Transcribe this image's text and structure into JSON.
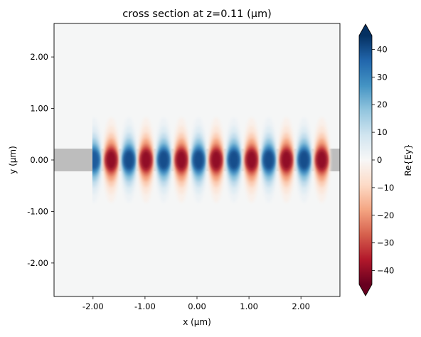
{
  "chart_data": {
    "type": "heatmap",
    "title": "cross section at z=0.11 (µm)",
    "xlabel": "x (µm)",
    "ylabel": "y (µm)",
    "colorbar_label": "Re{Ey}",
    "colormap": "RdBu",
    "xlim": [
      -2.75,
      2.75
    ],
    "ylim": [
      -2.65,
      2.65
    ],
    "clim": [
      -45,
      45
    ],
    "x_ticks": [
      -2,
      -1,
      0,
      1,
      2
    ],
    "x_tick_labels": [
      "-2.00",
      "-1.00",
      "0.00",
      "1.00",
      "2.00"
    ],
    "y_ticks": [
      2,
      1,
      0,
      -1,
      -2
    ],
    "y_tick_labels": [
      "2.00",
      "1.00",
      "0.00",
      "-1.00",
      "-2.00"
    ],
    "colorbar_ticks": [
      40,
      30,
      20,
      10,
      0,
      -10,
      -20,
      -30,
      -40
    ],
    "colorbar_tick_labels": [
      "40",
      "30",
      "20",
      "10",
      "0",
      "−10",
      "−20",
      "−30",
      "−40"
    ],
    "waveguide": {
      "y_min": -0.22,
      "y_max": 0.22,
      "color": "#bdbdbd"
    },
    "source_x": -2.0,
    "field_lobes": [
      {
        "x": -1.985,
        "value": 38
      },
      {
        "x": -1.65,
        "value": -40
      },
      {
        "x": -1.31,
        "value": 40
      },
      {
        "x": -0.98,
        "value": -40
      },
      {
        "x": -0.64,
        "value": 40
      },
      {
        "x": -0.3,
        "value": -40
      },
      {
        "x": 0.03,
        "value": 40
      },
      {
        "x": 0.37,
        "value": -40
      },
      {
        "x": 0.71,
        "value": 40
      },
      {
        "x": 1.05,
        "value": -40
      },
      {
        "x": 1.38,
        "value": 40
      },
      {
        "x": 1.72,
        "value": -40
      },
      {
        "x": 2.06,
        "value": 40
      },
      {
        "x": 2.4,
        "value": -40
      }
    ],
    "background_color": "#f5f6f6"
  }
}
